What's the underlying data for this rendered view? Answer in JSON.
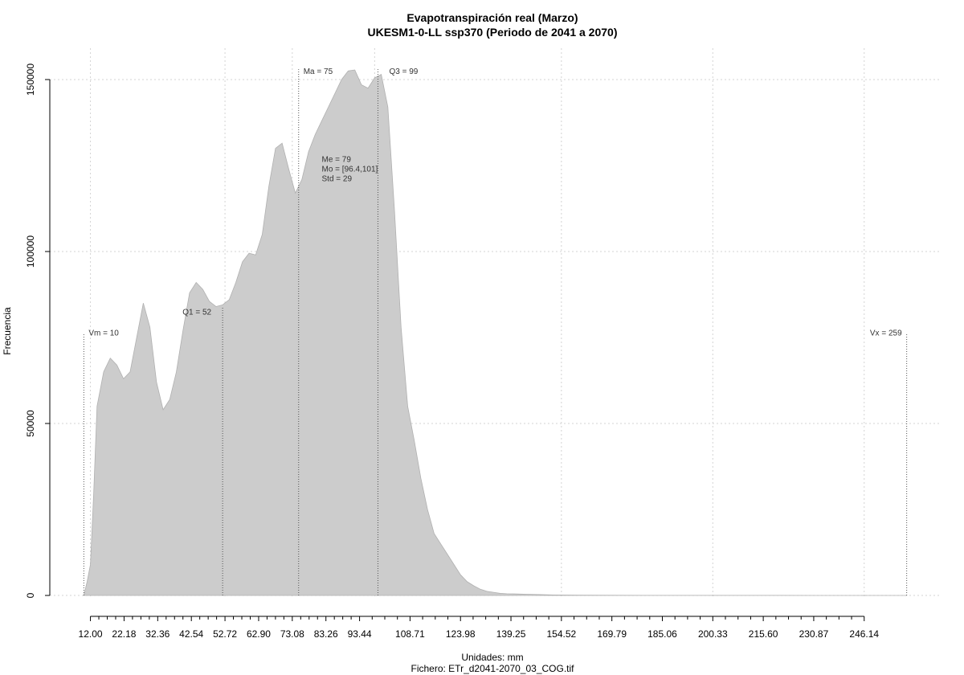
{
  "chart_data": {
    "type": "area",
    "title": "Evapotranspiración real (Marzo)",
    "subtitle": "UKESM1-0-LL ssp370 (Periodo de 2041 a 2070)",
    "xlabel": "Unidades: mm",
    "footer": "Fichero: ETr_d2041-2070_03_COG.tif",
    "ylabel": "Frecuencia",
    "xlim": [
      7,
      262
    ],
    "ylim": [
      0,
      150000
    ],
    "x_ticks": [
      12.0,
      22.18,
      32.36,
      42.54,
      52.72,
      62.9,
      73.08,
      83.26,
      93.44,
      108.71,
      123.98,
      139.25,
      154.52,
      169.79,
      185.06,
      200.33,
      215.6,
      230.87,
      246.14
    ],
    "x_tick_labels": [
      "12.00",
      "22.18",
      "32.36",
      "42.54",
      "52.72",
      "62.90",
      "73.08",
      "83.26",
      "93.44",
      "108.71",
      "123.98",
      "139.25",
      "154.52",
      "169.79",
      "185.06",
      "200.33",
      "215.60",
      "230.87",
      "246.14"
    ],
    "y_ticks": [
      0,
      50000,
      100000,
      150000
    ],
    "y_tick_labels": [
      "0",
      "50000",
      "100000",
      "150000"
    ],
    "x_grid": [
      12.0,
      52.72,
      73.08,
      98.0,
      154.52,
      200.33,
      246.14
    ],
    "grid": true,
    "fill_color": "#cccccc",
    "series": [
      {
        "x": [
          10,
          11,
          12,
          13,
          14,
          16,
          18,
          20,
          22,
          24,
          26,
          28,
          30,
          32,
          34,
          36,
          38,
          40,
          42,
          44,
          46,
          48,
          50,
          52,
          54,
          56,
          58,
          60,
          62,
          64,
          66,
          68,
          70,
          72,
          74,
          76,
          78,
          80,
          82,
          84,
          86,
          88,
          90,
          92,
          94,
          96,
          98,
          100,
          102,
          104,
          106,
          108,
          110,
          112,
          114,
          116,
          118,
          120,
          122,
          124,
          126,
          128,
          130,
          132,
          134,
          136,
          138,
          140,
          142,
          144,
          148,
          152,
          156,
          160,
          170,
          180,
          200,
          220,
          240,
          250,
          259
        ],
        "y": [
          0,
          4000,
          9000,
          30000,
          55000,
          65000,
          69000,
          67000,
          63000,
          65000,
          75000,
          85000,
          78000,
          62000,
          54000,
          57000,
          65000,
          77000,
          88000,
          91000,
          89000,
          85500,
          84000,
          84500,
          86000,
          91000,
          97000,
          99500,
          99000,
          105000,
          119000,
          130000,
          131500,
          124000,
          117000,
          121000,
          129000,
          134000,
          138000,
          142000,
          146000,
          150000,
          152500,
          152800,
          148500,
          147500,
          150500,
          151500,
          142000,
          112000,
          78000,
          55000,
          45000,
          34000,
          25000,
          18000,
          15000,
          12000,
          9000,
          6000,
          4000,
          2800,
          1800,
          1200,
          900,
          600,
          500,
          450,
          400,
          350,
          250,
          150,
          100,
          80,
          50,
          30,
          20,
          10,
          5,
          3,
          0
        ]
      }
    ],
    "annotations": {
      "vm": {
        "label": "Vm = 10",
        "x": 10,
        "y": 76000
      },
      "q1": {
        "label": "Q1 = 52",
        "x": 52,
        "y": 84000
      },
      "ma": {
        "label": "Ma = 75",
        "x": 75,
        "y": 153000
      },
      "me": {
        "label": "Me = 79"
      },
      "mo": {
        "label": "Mo = [96.4,101]"
      },
      "std": {
        "label": "Std = 29"
      },
      "q3": {
        "label": "Q3 = 99",
        "x": 99,
        "y": 153000
      },
      "vx": {
        "label": "Vx = 259",
        "x": 259,
        "y": 76000
      },
      "stats_anchor": {
        "x": 82,
        "y": 126000
      }
    }
  }
}
